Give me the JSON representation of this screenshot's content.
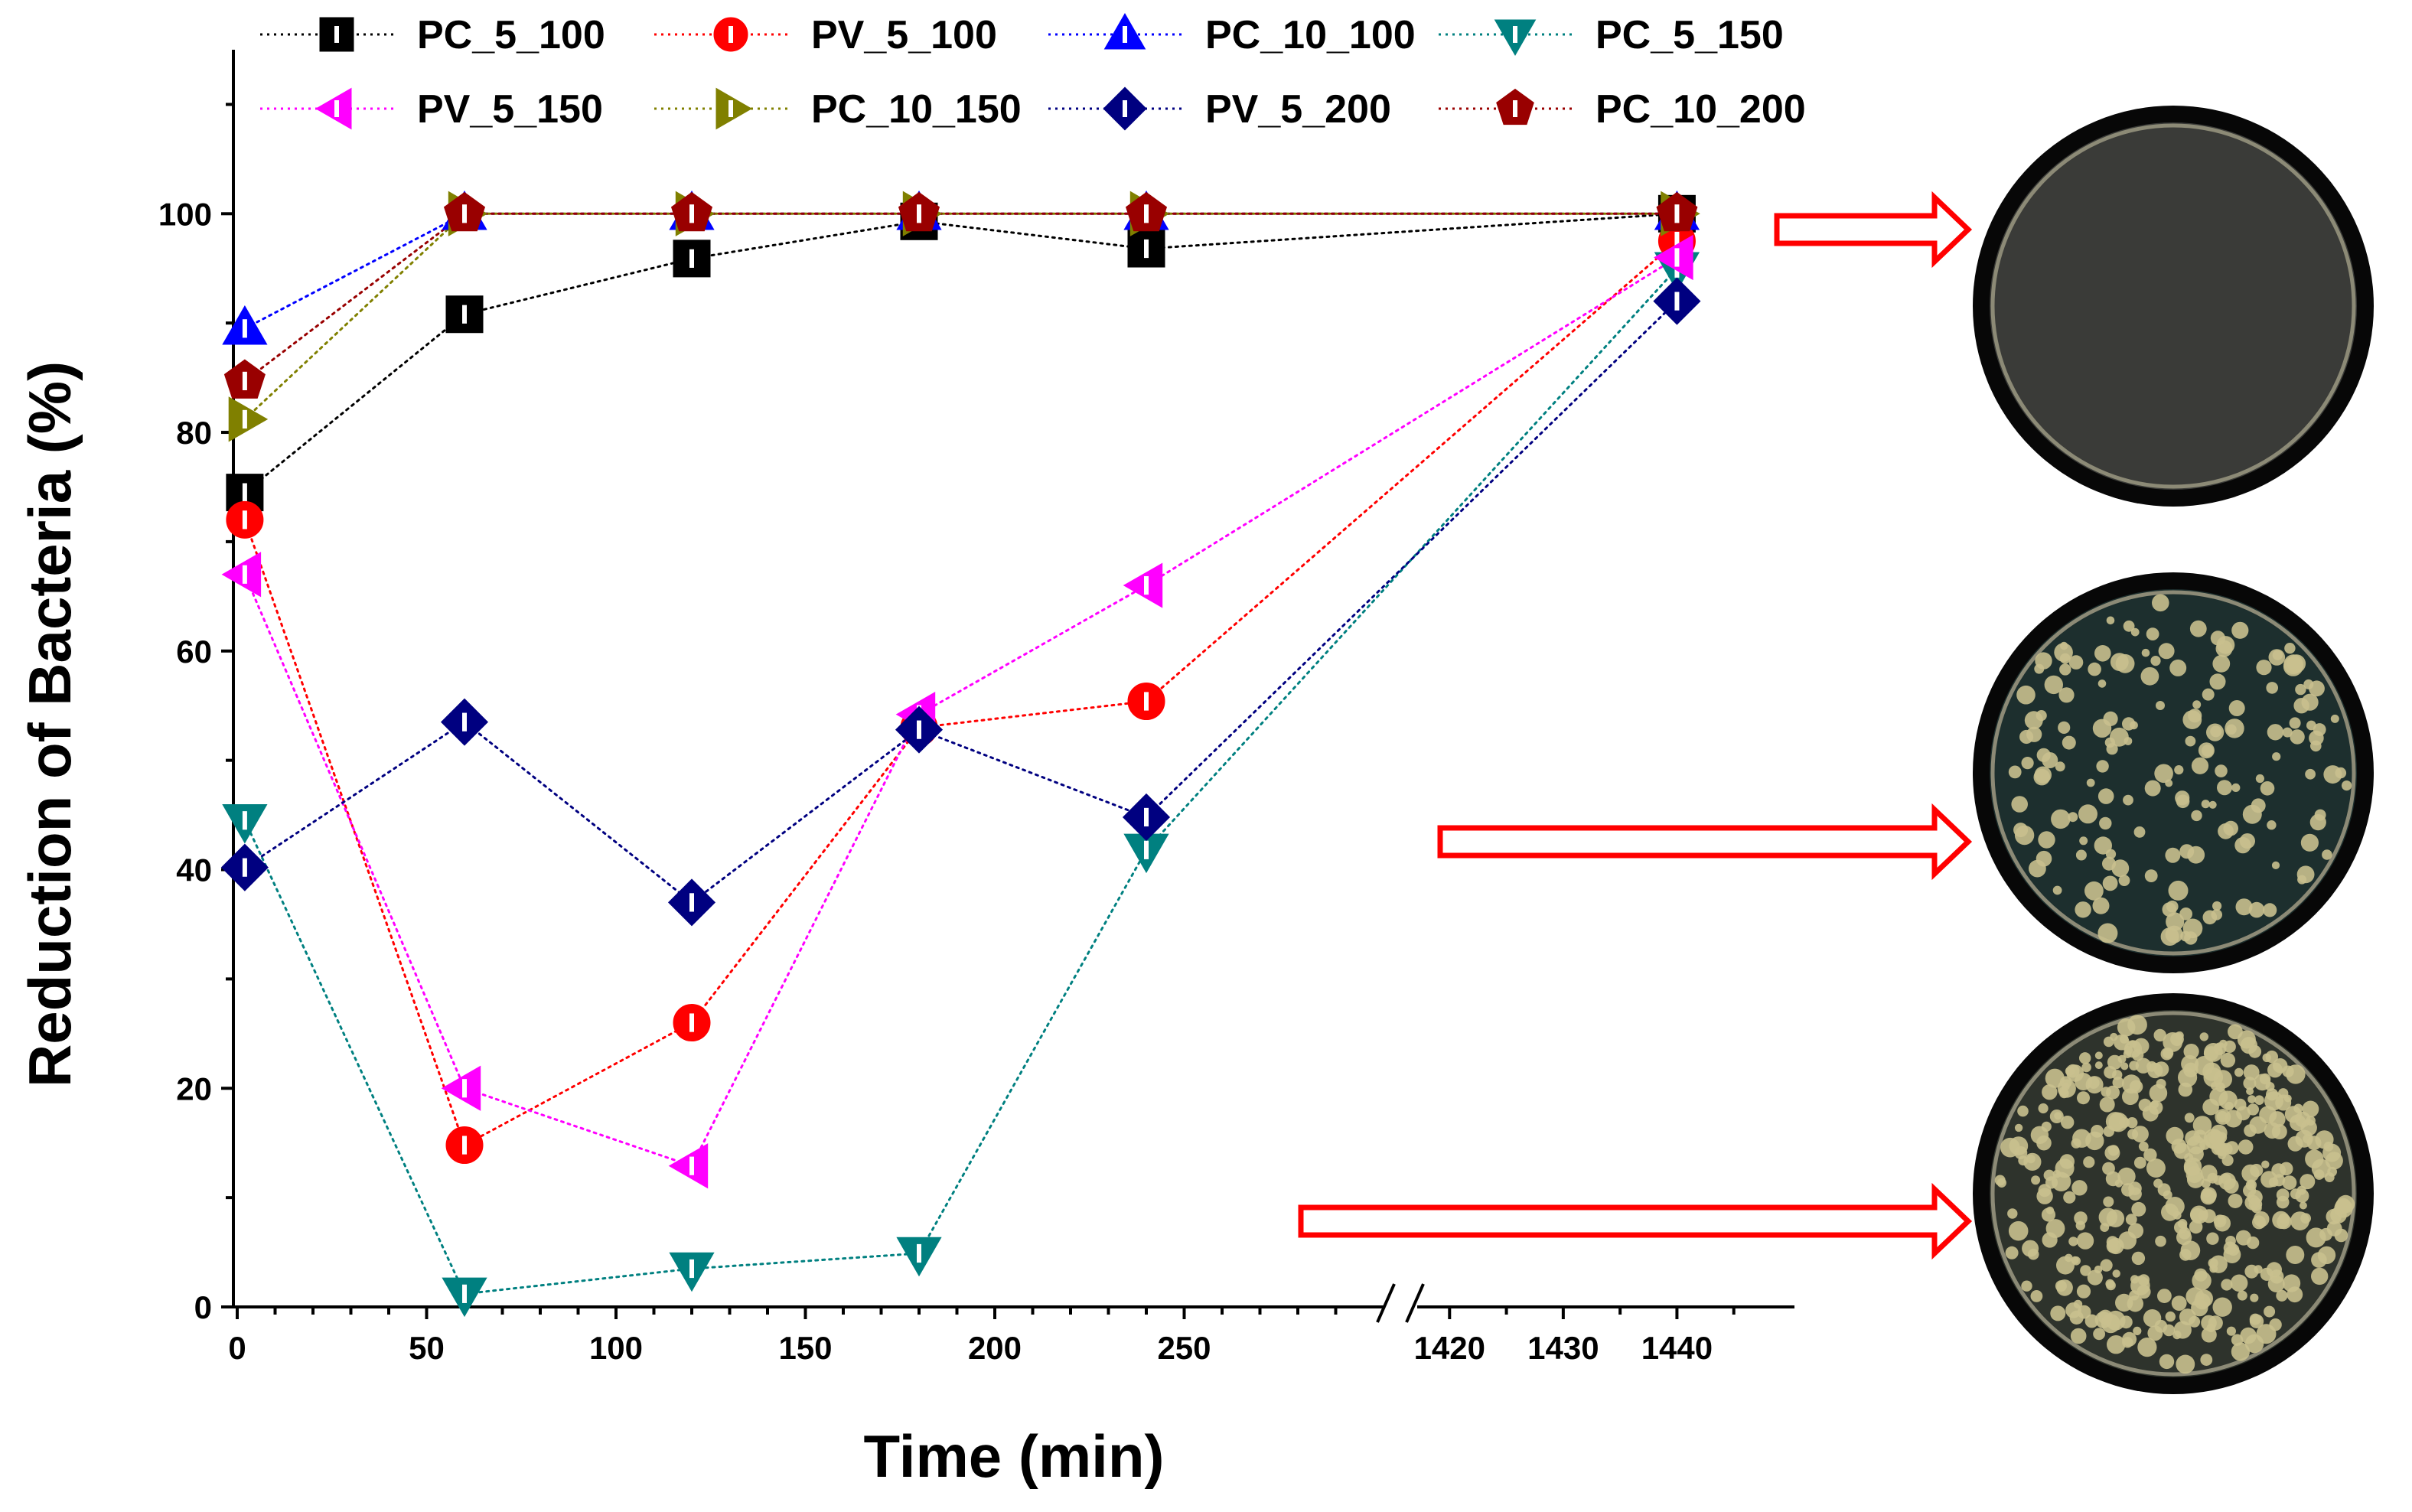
{
  "chart_data": {
    "type": "scatter",
    "xlabel": "Time (min)",
    "ylabel": "Reduction of Bacteria (%)",
    "x_ticks": [
      "0",
      "50",
      "100",
      "150",
      "200",
      "250",
      "1420",
      "1430",
      "1440"
    ],
    "y_ticks": [
      "0",
      "20",
      "40",
      "60",
      "80",
      "100"
    ],
    "ylim": [
      0,
      115
    ],
    "x_axis_break": {
      "before": 300,
      "after": 1415
    },
    "x_segments": [
      [
        0,
        300
      ],
      [
        1415,
        1450
      ]
    ],
    "grid": false,
    "legend_position": "top",
    "series": [
      {
        "name": "PC_5_100",
        "color": "#000000",
        "marker": "square",
        "x": [
          2,
          60,
          120,
          180,
          240,
          1440
        ],
        "y": [
          74.5,
          90.8,
          95.9,
          99.3,
          96.8,
          100
        ]
      },
      {
        "name": "PV_5_100",
        "color": "#ff0000",
        "marker": "circle",
        "x": [
          2,
          60,
          120,
          180,
          240,
          1440
        ],
        "y": [
          72,
          14.8,
          26,
          53,
          55.4,
          97.5
        ]
      },
      {
        "name": "PC_10_100",
        "color": "#0000ff",
        "marker": "triangle-up",
        "x": [
          2,
          60,
          120,
          180,
          240,
          1440
        ],
        "y": [
          89.5,
          100,
          100,
          100,
          100,
          100
        ]
      },
      {
        "name": "PC_5_150",
        "color": "#008080",
        "marker": "triangle-down",
        "x": [
          2,
          60,
          120,
          180,
          240,
          1440
        ],
        "y": [
          44.5,
          1.2,
          3.5,
          4.9,
          41.8,
          95
        ]
      },
      {
        "name": "PV_5_150",
        "color": "#ff00ff",
        "marker": "triangle-left",
        "x": [
          2,
          60,
          120,
          180,
          240,
          1440
        ],
        "y": [
          67,
          20,
          12.9,
          54.2,
          66,
          96
        ]
      },
      {
        "name": "PC_10_150",
        "color": "#808000",
        "marker": "triangle-right",
        "x": [
          2,
          60,
          120,
          180,
          240,
          1440
        ],
        "y": [
          81.2,
          100,
          100,
          100,
          100,
          100
        ]
      },
      {
        "name": "PV_5_200",
        "color": "#000080",
        "marker": "diamond",
        "x": [
          2,
          60,
          120,
          180,
          240,
          1440
        ],
        "y": [
          40.2,
          53.5,
          37,
          52.8,
          44.8,
          92
        ]
      },
      {
        "name": "PC_10_200",
        "color": "#990000",
        "marker": "pentagon",
        "x": [
          2,
          60,
          120,
          180,
          240,
          1440
        ],
        "y": [
          84.7,
          100,
          100,
          100,
          100,
          100
        ]
      }
    ]
  },
  "annotations": {
    "arrow_color": "#ff0000",
    "photos": [
      {
        "name": "clear-plate",
        "colonies": 0
      },
      {
        "name": "medium-colony-plate",
        "colonies": 170
      },
      {
        "name": "dense-colony-plate",
        "colonies": 420
      }
    ]
  }
}
